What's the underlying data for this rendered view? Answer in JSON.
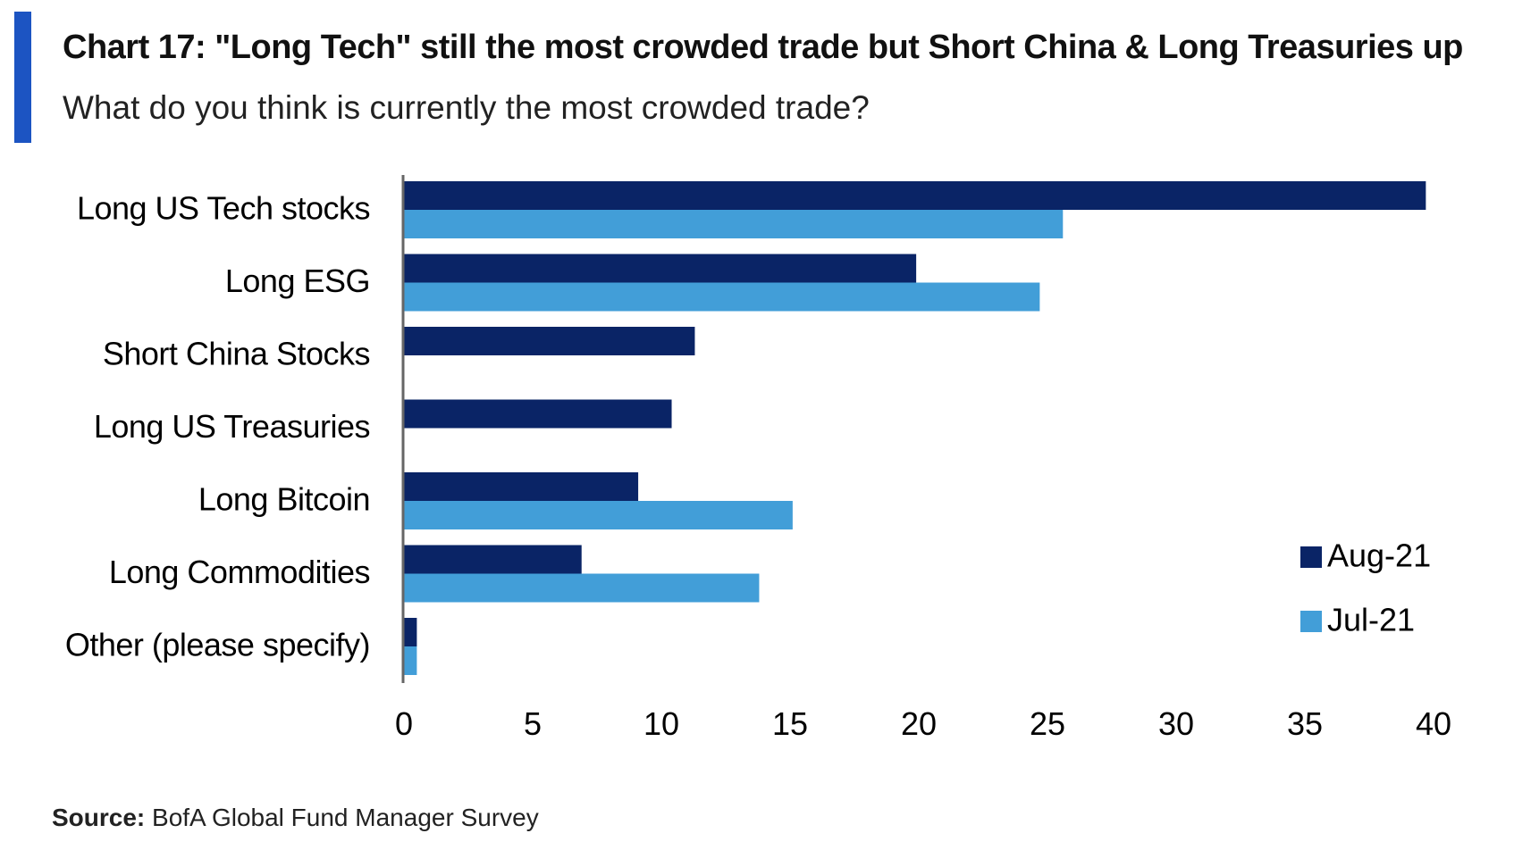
{
  "header": {
    "title": "Chart 17: \"Long Tech\" still the most crowded trade but Short China & Long Treasuries up",
    "subtitle": "What do you think is currently the most crowded trade?"
  },
  "footer": {
    "source_label": "Source:",
    "source_text": "BofA Global Fund Manager Survey"
  },
  "colors": {
    "accent": "#1c54c2",
    "aug": "#0a2466",
    "jul": "#429ed8",
    "axis": "#666666"
  },
  "chart_data": {
    "type": "bar",
    "orientation": "horizontal",
    "title": "Chart 17: \"Long Tech\" still the most crowded trade but Short China & Long Treasuries up",
    "subtitle": "What do you think is currently the most crowded trade?",
    "categories": [
      "Long US Tech stocks",
      "Long ESG",
      "Short China Stocks",
      "Long US Treasuries",
      "Long Bitcoin",
      "Long Commodities",
      "Other (please specify)"
    ],
    "series": [
      {
        "name": "Aug-21",
        "values": [
          39.7,
          19.9,
          11.3,
          10.4,
          9.1,
          6.9,
          0.5
        ]
      },
      {
        "name": "Jul-21",
        "values": [
          25.6,
          24.7,
          null,
          null,
          15.1,
          13.8,
          0.5
        ]
      }
    ],
    "xlim": [
      0,
      40
    ],
    "xticks": [
      0,
      5,
      10,
      15,
      20,
      25,
      30,
      35,
      40
    ],
    "xlabel": "",
    "ylabel": "",
    "grid": false,
    "legend_position": "bottom-right"
  }
}
